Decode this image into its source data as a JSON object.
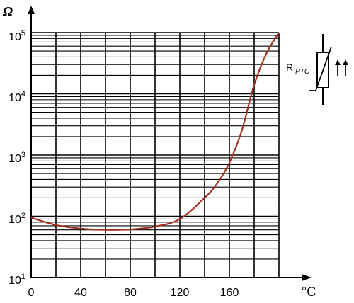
{
  "chart_data": {
    "type": "line",
    "title": "",
    "xlabel": "°C",
    "ylabel": "Ω",
    "x_ticks": [
      "0",
      "40",
      "80",
      "120",
      "160"
    ],
    "y_ticks": [
      {
        "base": "10",
        "exp": "1"
      },
      {
        "base": "10",
        "exp": "2"
      },
      {
        "base": "10",
        "exp": "3"
      },
      {
        "base": "10",
        "exp": "4"
      },
      {
        "base": "10",
        "exp": "5"
      }
    ],
    "xlim": [
      0,
      200
    ],
    "ylim": [
      10,
      100000
    ],
    "y_scale": "log",
    "grid": true,
    "series": [
      {
        "color": "#a0321e",
        "points": [
          [
            0,
            95
          ],
          [
            20,
            72
          ],
          [
            40,
            63
          ],
          [
            60,
            60
          ],
          [
            80,
            61
          ],
          [
            100,
            68
          ],
          [
            120,
            90
          ],
          [
            140,
            200
          ],
          [
            150,
            340
          ],
          [
            160,
            750
          ],
          [
            170,
            2500
          ],
          [
            180,
            14000
          ],
          [
            190,
            46000
          ],
          [
            200,
            100000
          ]
        ]
      }
    ]
  },
  "symbol": {
    "label_main": "R",
    "label_sub": "PTC"
  }
}
